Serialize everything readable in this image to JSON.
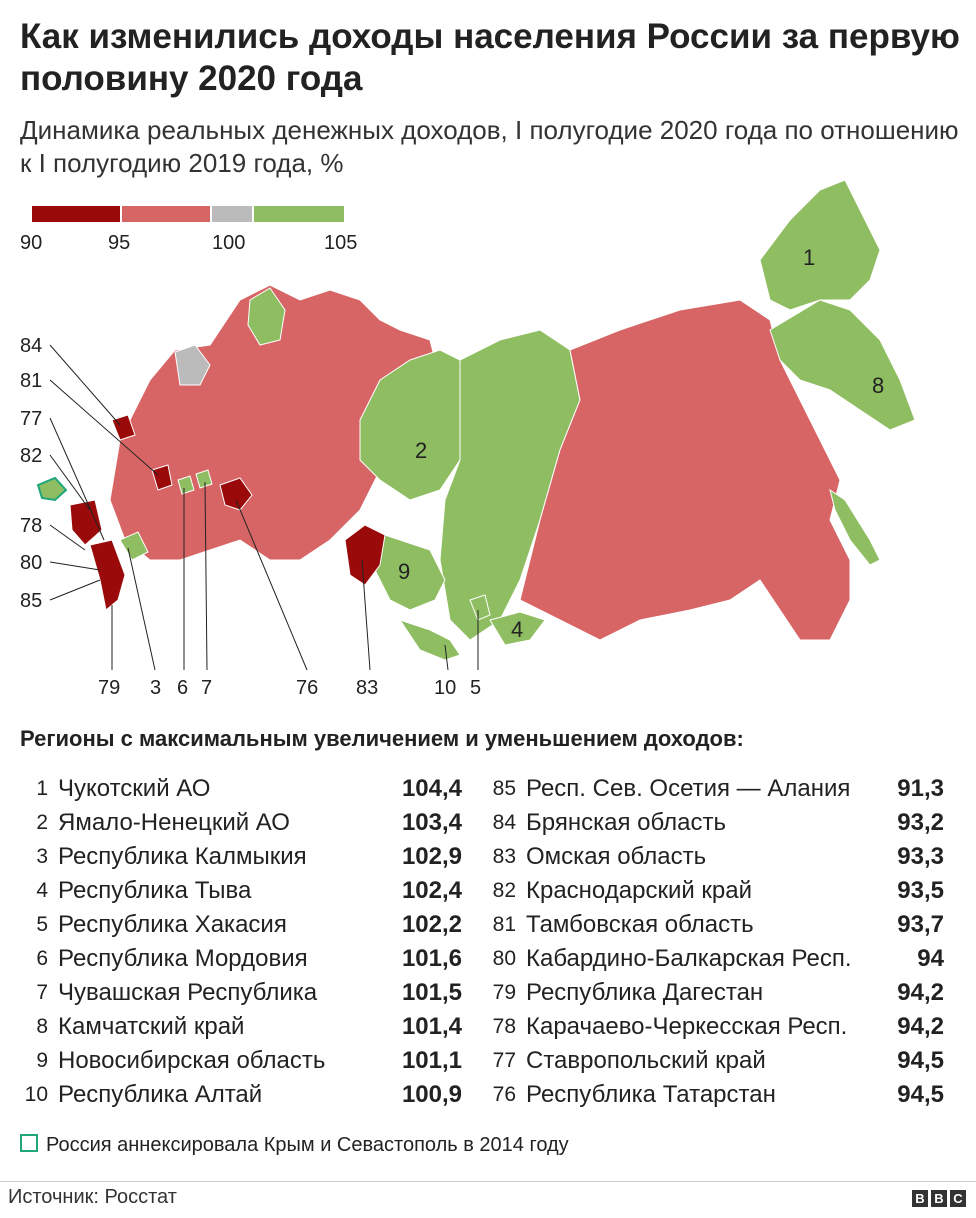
{
  "title": "Как изменились доходы населения России за первую половину 2020 года",
  "subtitle": "Динамика реальных денежных доходов, I полугодие 2020 года по отношению к I полугодию 2019 года, %",
  "legend": {
    "ticks": [
      "90",
      "95",
      "100",
      "105"
    ],
    "colors": [
      "#9b0a0a",
      "#d86565",
      "#bbbbbb",
      "#8fbd62"
    ]
  },
  "colors": {
    "decline_strong": "#9b0a0a",
    "decline": "#d86565",
    "neutral": "#bbbbbb",
    "growth": "#8fbd62",
    "crimea_outline": "#1fa67a"
  },
  "map_labels": {
    "inner": [
      "1",
      "2",
      "4",
      "8",
      "9"
    ],
    "left": [
      "84",
      "81",
      "77",
      "82",
      "78",
      "80",
      "85"
    ],
    "bottom": [
      "79",
      "3",
      "6",
      "7",
      "76",
      "83",
      "10",
      "5"
    ]
  },
  "section_title": "Регионы с максимальным увеличением и уменьшением доходов:",
  "growth_regions": [
    {
      "rank": "1",
      "name": "Чукотский АО",
      "value": "104,4"
    },
    {
      "rank": "2",
      "name": "Ямало-Ненецкий АО",
      "value": "103,4"
    },
    {
      "rank": "3",
      "name": "Республика Калмыкия",
      "value": "102,9"
    },
    {
      "rank": "4",
      "name": "Республика Тыва",
      "value": "102,4"
    },
    {
      "rank": "5",
      "name": "Республика Хакасия",
      "value": "102,2"
    },
    {
      "rank": "6",
      "name": "Республика Мордовия",
      "value": "101,6"
    },
    {
      "rank": "7",
      "name": "Чувашская Республика",
      "value": "101,5"
    },
    {
      "rank": "8",
      "name": "Камчатский край",
      "value": "101,4"
    },
    {
      "rank": "9",
      "name": "Новосибирская область",
      "value": "101,1"
    },
    {
      "rank": "10",
      "name": "Республика Алтай",
      "value": "100,9"
    }
  ],
  "decline_regions": [
    {
      "rank": "85",
      "name": "Респ. Сев. Осетия — Алания",
      "value": "91,3"
    },
    {
      "rank": "84",
      "name": "Брянская область",
      "value": "93,2"
    },
    {
      "rank": "83",
      "name": "Омская область",
      "value": "93,3"
    },
    {
      "rank": "82",
      "name": "Краснодарский край",
      "value": "93,5"
    },
    {
      "rank": "81",
      "name": "Тамбовская область",
      "value": "93,7"
    },
    {
      "rank": "80",
      "name": "Кабардино-Балкарская Респ.",
      "value": "94"
    },
    {
      "rank": "79",
      "name": "Республика Дагестан",
      "value": "94,2"
    },
    {
      "rank": "78",
      "name": "Карачаево-Черкесская Респ.",
      "value": "94,2"
    },
    {
      "rank": "77",
      "name": "Ставропольский край",
      "value": "94,5"
    },
    {
      "rank": "76",
      "name": "Республика Татарстан",
      "value": "94,5"
    }
  ],
  "note": "Россия аннексировала Крым и Севастополь в 2014 году",
  "source": "Источник: Росстат",
  "logo_letters": [
    "B",
    "B",
    "C"
  ]
}
